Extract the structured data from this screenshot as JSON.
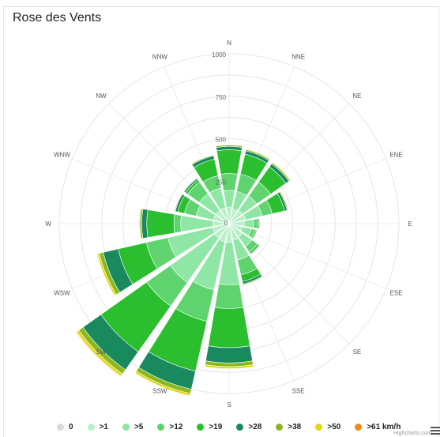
{
  "title": "Rose des Vents",
  "credits": "Highcharts.com",
  "colors": [
    "#d9d9d9",
    "#b9f0c8",
    "#8fe6a5",
    "#5fd36e",
    "#2bbf2f",
    "#188a5e",
    "#8ab81e",
    "#e4d714",
    "#f08c16"
  ],
  "chart_data": {
    "type": "polar-stacked-bar",
    "title": "Rose des Vents",
    "directions": [
      "N",
      "NNE",
      "NE",
      "ENE",
      "E",
      "ESE",
      "SE",
      "SSE",
      "S",
      "SSW",
      "SW",
      "WSW",
      "W",
      "WNW",
      "NW",
      "NNW"
    ],
    "radial_ticks": [
      250,
      500,
      750,
      1000
    ],
    "radial_max": 1000,
    "series": [
      {
        "name": "0",
        "values": [
          0,
          0,
          0,
          0,
          0,
          0,
          0,
          0,
          0,
          0,
          0,
          0,
          0,
          0,
          0,
          0
        ]
      },
      {
        "name": ">1",
        "values": [
          95,
          90,
          95,
          100,
          90,
          80,
          95,
          100,
          110,
          110,
          105,
          100,
          95,
          95,
          95,
          95
        ]
      },
      {
        "name": ">5",
        "values": [
          100,
          105,
          105,
          100,
          55,
          55,
          70,
          120,
          250,
          290,
          320,
          270,
          190,
          105,
          120,
          120
        ]
      },
      {
        "name": ">12",
        "values": [
          100,
          105,
          100,
          60,
          20,
          20,
          40,
          90,
          140,
          190,
          170,
          130,
          40,
          70,
          85,
          75
        ]
      },
      {
        "name": ">19",
        "values": [
          140,
          120,
          110,
          75,
          10,
          8,
          12,
          40,
          230,
          300,
          330,
          170,
          160,
          40,
          15,
          100
        ]
      },
      {
        "name": ">28",
        "values": [
          20,
          20,
          22,
          15,
          5,
          5,
          5,
          15,
          90,
          110,
          130,
          90,
          30,
          15,
          10,
          20
        ]
      },
      {
        "name": ">38",
        "values": [
          8,
          8,
          8,
          6,
          3,
          3,
          3,
          6,
          22,
          26,
          30,
          24,
          10,
          5,
          5,
          6
        ]
      },
      {
        "name": ">50",
        "values": [
          4,
          4,
          4,
          3,
          2,
          2,
          2,
          3,
          12,
          14,
          16,
          12,
          5,
          2,
          2,
          3
        ]
      },
      {
        "name": ">61 km/h",
        "values": [
          0,
          0,
          0,
          0,
          0,
          0,
          0,
          0,
          2,
          3,
          4,
          3,
          1,
          0,
          0,
          0
        ]
      }
    ]
  }
}
